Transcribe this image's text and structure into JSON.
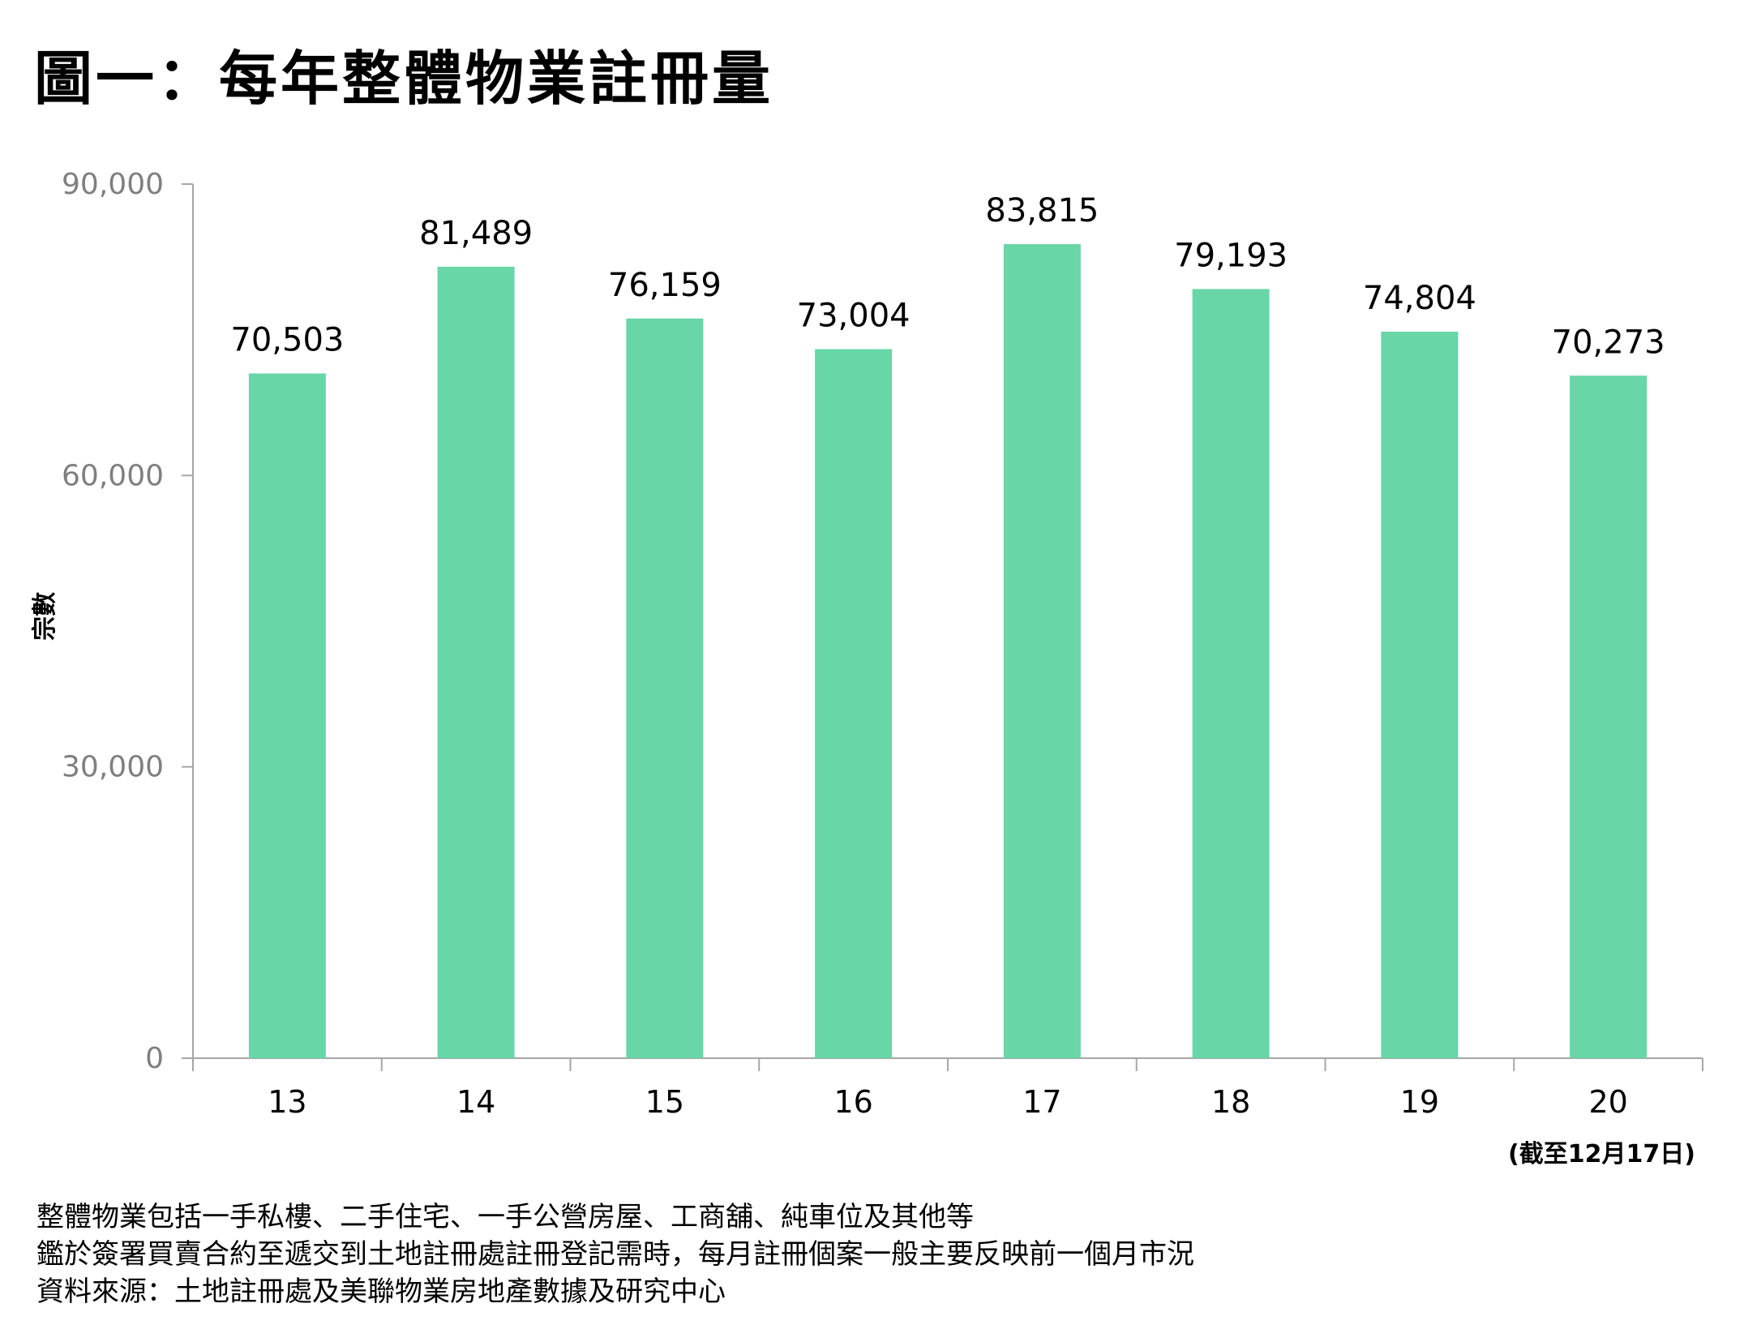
{
  "title": "圖一：每年整體物業註冊量",
  "chart_data": {
    "type": "bar",
    "categories": [
      "13",
      "14",
      "15",
      "16",
      "17",
      "18",
      "19",
      "20"
    ],
    "values": [
      70503,
      81489,
      76159,
      73004,
      83815,
      79193,
      74804,
      70273
    ],
    "value_labels": [
      "70,503",
      "81,489",
      "76,159",
      "73,004",
      "83,815",
      "79,193",
      "74,804",
      "70,273"
    ],
    "ylabel": "宗數",
    "xlabel": "",
    "ylim": [
      0,
      90000
    ],
    "yticks": [
      0,
      30000,
      60000,
      90000
    ],
    "ytick_labels": [
      "0",
      "30,000",
      "60,000",
      "90,000"
    ],
    "bar_color": "#68d6a7",
    "grid": false,
    "annotation": "(截至12月17日)"
  },
  "footnotes": [
    "整體物業包括一手私樓、二手住宅、一手公營房屋、工商舖、純車位及其他等",
    "鑑於簽署買賣合約至遞交到土地註冊處註冊登記需時，每月註冊個案一般主要反映前一個月市況",
    "資料來源：土地註冊處及美聯物業房地產數據及研究中心"
  ]
}
